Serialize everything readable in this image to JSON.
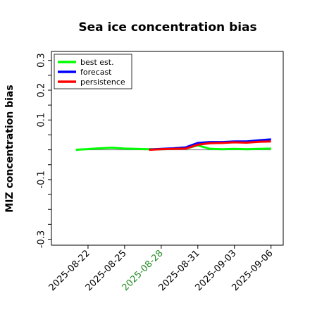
{
  "chart_data": {
    "type": "line",
    "title": "Sea ice concentration bias",
    "ylabel": "MIZ concentration bias",
    "xlabel": "",
    "ylim": [
      -0.32,
      0.33
    ],
    "xlim": [
      "2025-08-19",
      "2025-09-07"
    ],
    "yticks": [
      {
        "value": 0.3,
        "label": "0.3"
      },
      {
        "value": 0.25,
        "label": ""
      },
      {
        "value": 0.2,
        "label": "0.2"
      },
      {
        "value": 0.15,
        "label": ""
      },
      {
        "value": 0.1,
        "label": "0.1"
      },
      {
        "value": 0.05,
        "label": ""
      },
      {
        "value": 0.0,
        "label": ""
      },
      {
        "value": -0.05,
        "label": ""
      },
      {
        "value": -0.1,
        "label": "-0.1"
      },
      {
        "value": -0.15,
        "label": ""
      },
      {
        "value": -0.2,
        "label": ""
      },
      {
        "value": -0.25,
        "label": ""
      },
      {
        "value": -0.3,
        "label": "-0.3"
      }
    ],
    "xticks": [
      {
        "value": "2025-08-22",
        "label": "2025-08-22",
        "color": "#000000"
      },
      {
        "value": "2025-08-25",
        "label": "2025-08-25",
        "color": "#000000"
      },
      {
        "value": "2025-08-28",
        "label": "2025-08-28",
        "color": "#228b22"
      },
      {
        "value": "2025-08-31",
        "label": "2025-08-31",
        "color": "#000000"
      },
      {
        "value": "2025-09-03",
        "label": "2025-09-03",
        "color": "#000000"
      },
      {
        "value": "2025-09-06",
        "label": "2025-09-06",
        "color": "#000000"
      }
    ],
    "zero_line": {
      "from": "2025-08-21",
      "to": "2025-09-06",
      "value": 0.0,
      "color": "#808080"
    },
    "legend_position": "top-left",
    "series": [
      {
        "name": "best est.",
        "color": "#00ff00",
        "x": [
          "2025-08-21",
          "2025-08-23",
          "2025-08-24",
          "2025-08-25",
          "2025-08-27",
          "2025-08-28",
          "2025-08-29",
          "2025-08-30",
          "2025-08-31",
          "2025-09-01",
          "2025-09-02",
          "2025-09-03",
          "2025-09-04",
          "2025-09-05",
          "2025-09-06"
        ],
        "values": [
          0.0,
          0.005,
          0.007,
          0.004,
          0.002,
          0.002,
          0.003,
          0.004,
          0.015,
          0.003,
          0.002,
          0.003,
          0.002,
          0.003,
          0.004
        ]
      },
      {
        "name": "forecast",
        "color": "#0000ff",
        "x": [
          "2025-08-27",
          "2025-08-28",
          "2025-08-29",
          "2025-08-30",
          "2025-08-31",
          "2025-09-01",
          "2025-09-02",
          "2025-09-03",
          "2025-09-04",
          "2025-09-05",
          "2025-09-06"
        ],
        "values": [
          0.001,
          0.003,
          0.005,
          0.008,
          0.023,
          0.026,
          0.026,
          0.028,
          0.028,
          0.032,
          0.035
        ]
      },
      {
        "name": "persistence",
        "color": "#ff0000",
        "x": [
          "2025-08-27",
          "2025-08-28",
          "2025-08-29",
          "2025-08-30",
          "2025-08-31",
          "2025-09-01",
          "2025-09-02",
          "2025-09-03",
          "2025-09-04",
          "2025-09-05",
          "2025-09-06"
        ],
        "values": [
          0.0,
          0.002,
          0.003,
          0.004,
          0.017,
          0.022,
          0.023,
          0.025,
          0.024,
          0.027,
          0.028
        ]
      }
    ]
  }
}
